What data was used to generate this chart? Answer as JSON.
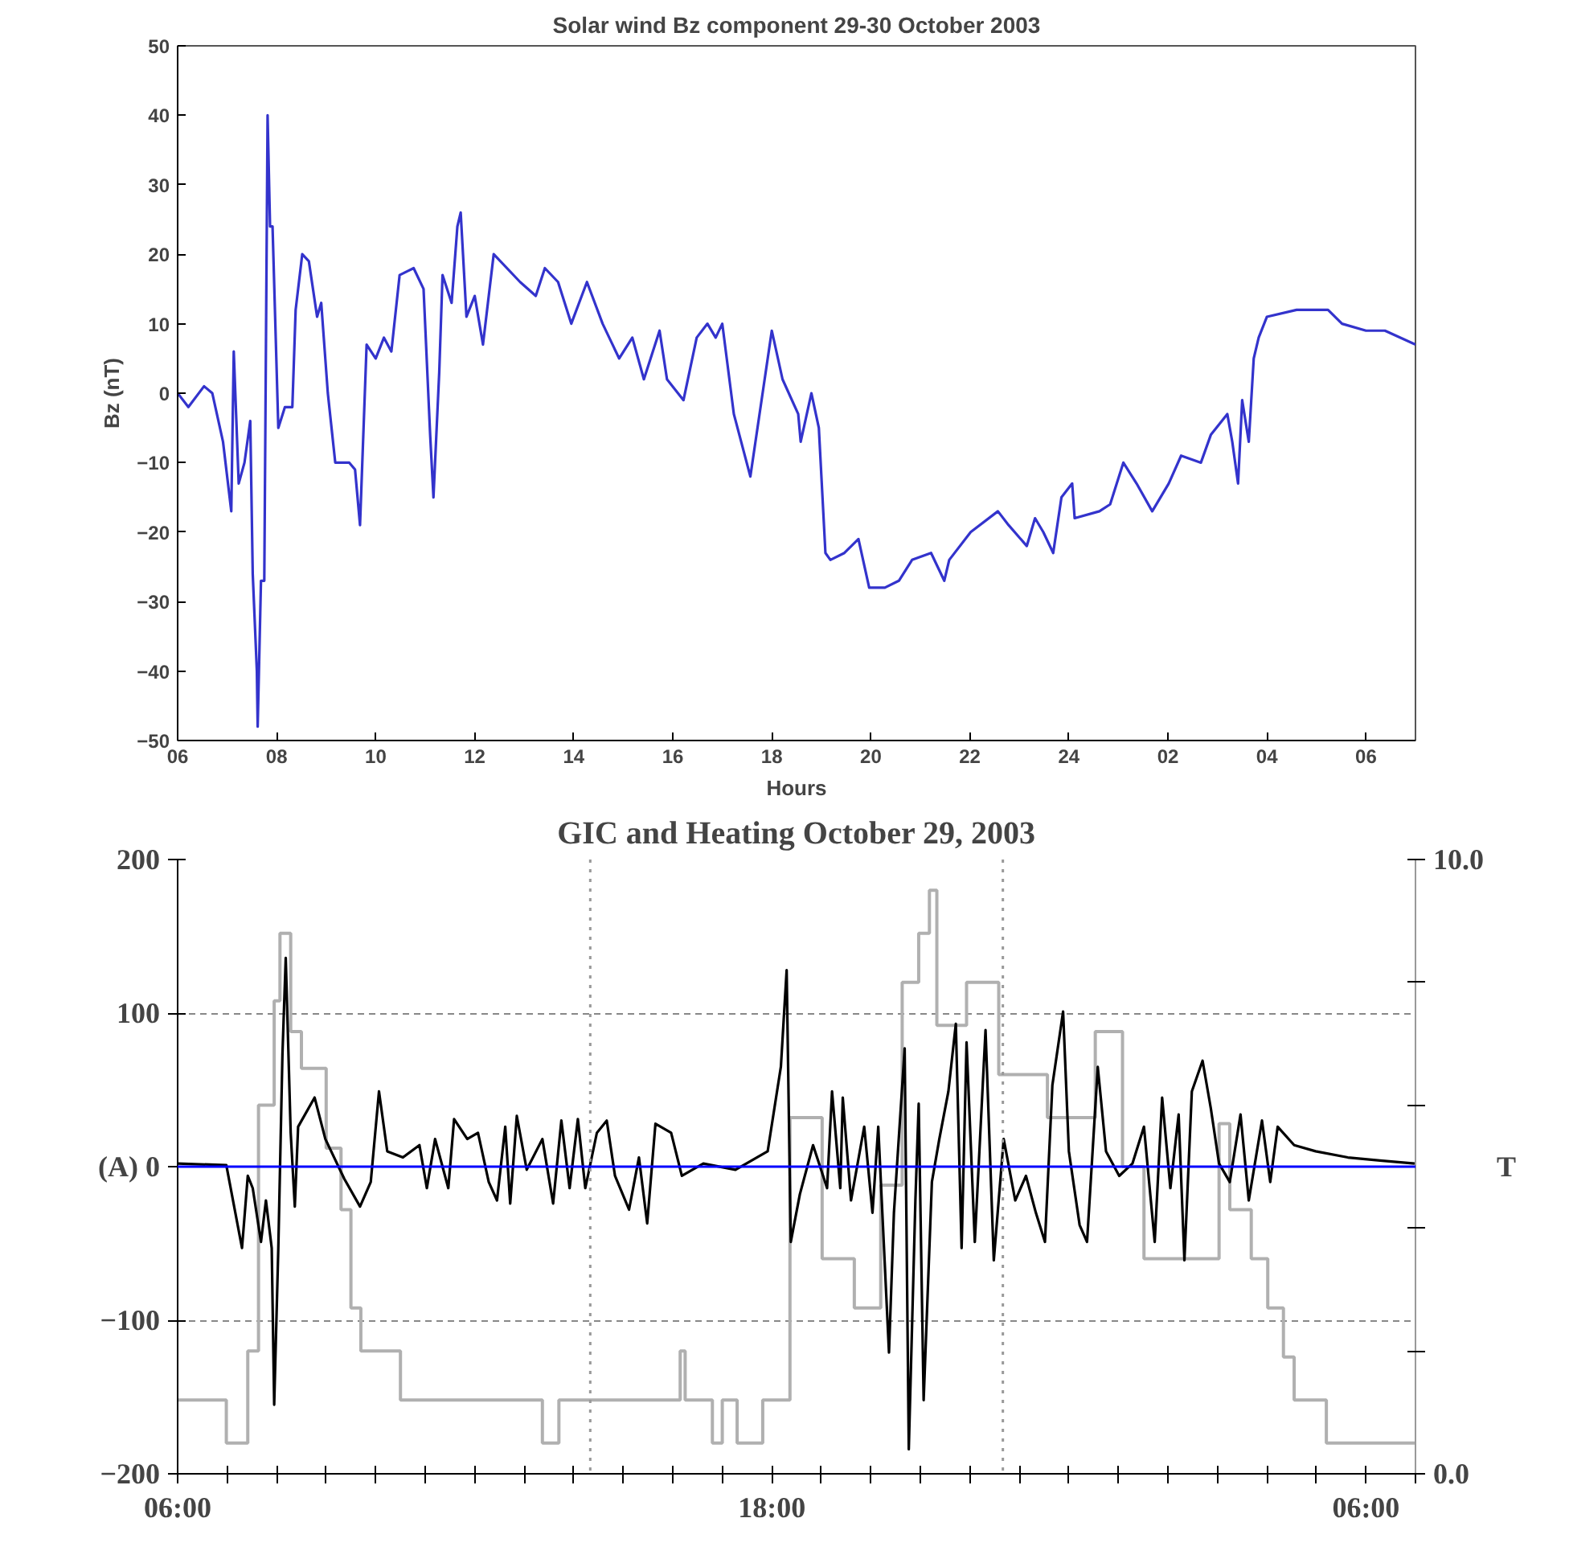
{
  "chart_data": [
    {
      "type": "line",
      "title": "Solar wind Bz component 29-30 October 2003",
      "xlabel": "Hours",
      "ylabel": "Bz (nT)",
      "xlim": [
        "2003-10-29T06:00",
        "2003-10-30T07:00"
      ],
      "ylim": [
        -50,
        50
      ],
      "xticks": [
        {
          "value": "2003-10-29T06:00",
          "label": "06"
        },
        {
          "value": "2003-10-29T08:00",
          "label": "08"
        },
        {
          "value": "2003-10-29T10:00",
          "label": "10"
        },
        {
          "value": "2003-10-29T12:00",
          "label": "12"
        },
        {
          "value": "2003-10-29T14:00",
          "label": "14"
        },
        {
          "value": "2003-10-29T16:00",
          "label": "16"
        },
        {
          "value": "2003-10-29T18:00",
          "label": "18"
        },
        {
          "value": "2003-10-29T20:00",
          "label": "20"
        },
        {
          "value": "2003-10-29T22:00",
          "label": "22"
        },
        {
          "value": "2003-10-30T00:00",
          "label": "24"
        },
        {
          "value": "2003-10-30T02:00",
          "label": "02"
        },
        {
          "value": "2003-10-30T04:00",
          "label": "04"
        },
        {
          "value": "2003-10-30T06:00",
          "label": "06"
        }
      ],
      "yticks": [
        -50,
        -40,
        -30,
        -20,
        -10,
        0,
        10,
        20,
        30,
        40,
        50
      ],
      "grid": false,
      "series": [
        {
          "color": "#3333cc",
          "x": [
            "2003-10-29T06:00",
            "2003-10-29T06:13",
            "2003-10-29T06:32",
            "2003-10-29T06:42",
            "2003-10-29T06:55",
            "2003-10-29T07:05",
            "2003-10-29T07:08",
            "2003-10-29T07:14",
            "2003-10-29T07:21",
            "2003-10-29T07:28",
            "2003-10-29T07:31",
            "2003-10-29T07:36",
            "2003-10-29T07:37",
            "2003-10-29T07:41",
            "2003-10-29T07:45",
            "2003-10-29T07:49",
            "2003-10-29T07:52",
            "2003-10-29T07:55",
            "2003-10-29T08:02",
            "2003-10-29T08:10",
            "2003-10-29T08:19",
            "2003-10-29T08:23",
            "2003-10-29T08:31",
            "2003-10-29T08:39",
            "2003-10-29T08:49",
            "2003-10-29T08:54",
            "2003-10-29T09:02",
            "2003-10-29T09:11",
            "2003-10-29T09:28",
            "2003-10-29T09:35",
            "2003-10-29T09:41",
            "2003-10-29T09:49",
            "2003-10-29T10:00",
            "2003-10-29T10:10",
            "2003-10-29T10:19",
            "2003-10-29T10:29",
            "2003-10-29T10:46",
            "2003-10-29T10:58",
            "2003-10-29T11:06",
            "2003-10-29T11:10",
            "2003-10-29T11:17",
            "2003-10-29T11:21",
            "2003-10-29T11:32",
            "2003-10-29T11:39",
            "2003-10-29T11:43",
            "2003-10-29T11:50",
            "2003-10-29T12:00",
            "2003-10-29T12:10",
            "2003-10-29T12:23",
            "2003-10-29T12:55",
            "2003-10-29T13:14",
            "2003-10-29T13:25",
            "2003-10-29T13:41",
            "2003-10-29T13:57",
            "2003-10-29T14:16",
            "2003-10-29T14:35",
            "2003-10-29T14:55",
            "2003-10-29T15:11",
            "2003-10-29T15:25",
            "2003-10-29T15:44",
            "2003-10-29T15:53",
            "2003-10-29T16:13",
            "2003-10-29T16:29",
            "2003-10-29T16:42",
            "2003-10-29T16:52",
            "2003-10-29T17:00",
            "2003-10-29T17:14",
            "2003-10-29T17:34",
            "2003-10-29T18:00",
            "2003-10-29T18:13",
            "2003-10-29T18:32",
            "2003-10-29T18:35",
            "2003-10-29T18:48",
            "2003-10-29T18:57",
            "2003-10-29T19:05",
            "2003-10-29T19:11",
            "2003-10-29T19:28",
            "2003-10-29T19:45",
            "2003-10-29T19:58",
            "2003-10-29T20:17",
            "2003-10-29T20:34",
            "2003-10-29T20:50",
            "2003-10-29T21:13",
            "2003-10-29T21:29",
            "2003-10-29T21:35",
            "2003-10-29T22:01",
            "2003-10-29T22:34",
            "2003-10-29T22:47",
            "2003-10-29T23:09",
            "2003-10-29T23:19",
            "2003-10-29T23:29",
            "2003-10-29T23:41",
            "2003-10-29T23:51",
            "2003-10-30T00:04",
            "2003-10-30T00:07",
            "2003-10-30T00:37",
            "2003-10-30T00:50",
            "2003-10-30T01:06",
            "2003-10-30T01:22",
            "2003-10-30T01:41",
            "2003-10-30T02:01",
            "2003-10-30T02:16",
            "2003-10-30T02:40",
            "2003-10-30T02:52",
            "2003-10-30T03:12",
            "2003-10-30T03:18",
            "2003-10-30T03:25",
            "2003-10-30T03:30",
            "2003-10-30T03:38",
            "2003-10-30T03:44",
            "2003-10-30T03:50",
            "2003-10-30T04:00",
            "2003-10-30T04:36",
            "2003-10-30T05:14",
            "2003-10-30T05:31",
            "2003-10-30T06:00",
            "2003-10-30T06:23",
            "2003-10-30T07:00"
          ],
          "values": [
            0,
            -2,
            1,
            0,
            -7,
            -17,
            6,
            -13,
            -10,
            -4,
            -26,
            -40,
            -48,
            -27,
            -27,
            40,
            24,
            24,
            -5,
            -2,
            -2,
            12,
            20,
            19,
            11,
            13,
            0,
            -10,
            -10,
            -11,
            -19,
            7,
            5,
            8,
            6,
            17,
            18,
            15,
            -6,
            -15,
            3,
            17,
            13,
            24,
            26,
            11,
            14,
            7,
            20,
            16,
            14,
            18,
            16,
            10,
            16,
            10,
            5,
            8,
            2,
            9,
            2,
            -1,
            8,
            10,
            8,
            10,
            -3,
            -12,
            9,
            2,
            -3,
            -7,
            0,
            -5,
            -23,
            -24,
            -23,
            -21,
            -28,
            -28,
            -27,
            -24,
            -23,
            -27,
            -24,
            -20,
            -17,
            -19,
            -22,
            -18,
            -20,
            -23,
            -15,
            -13,
            -18,
            -17,
            -16,
            -10,
            -13,
            -17,
            -13,
            -9,
            -10,
            -6,
            -3,
            -7,
            -13,
            -1,
            -7,
            5,
            8,
            11,
            12,
            12,
            10,
            9,
            9,
            7
          ]
        }
      ]
    },
    {
      "type": "line",
      "title": "GIC and Heating October 29, 2003",
      "y2label": "T",
      "xlim": [
        "2003-10-29T06:00",
        "2003-10-30T07:00"
      ],
      "ylim": [
        -200,
        200
      ],
      "y2lim": [
        0,
        10
      ],
      "xticks": [
        {
          "value": "2003-10-29T06:00",
          "label": "06:00"
        },
        {
          "value": "2003-10-29T07:00",
          "label": null
        },
        {
          "value": "2003-10-29T08:00",
          "label": null
        },
        {
          "value": "2003-10-29T09:00",
          "label": null
        },
        {
          "value": "2003-10-29T10:00",
          "label": null
        },
        {
          "value": "2003-10-29T11:00",
          "label": null
        },
        {
          "value": "2003-10-29T12:00",
          "label": null
        },
        {
          "value": "2003-10-29T13:00",
          "label": null
        },
        {
          "value": "2003-10-29T14:00",
          "label": null
        },
        {
          "value": "2003-10-29T15:00",
          "label": null
        },
        {
          "value": "2003-10-29T16:00",
          "label": null
        },
        {
          "value": "2003-10-29T17:00",
          "label": null
        },
        {
          "value": "2003-10-29T18:00",
          "label": "18:00"
        },
        {
          "value": "2003-10-29T19:00",
          "label": null
        },
        {
          "value": "2003-10-29T20:00",
          "label": null
        },
        {
          "value": "2003-10-29T21:00",
          "label": null
        },
        {
          "value": "2003-10-29T22:00",
          "label": null
        },
        {
          "value": "2003-10-29T23:00",
          "label": null
        },
        {
          "value": "2003-10-30T00:00",
          "label": null
        },
        {
          "value": "2003-10-30T01:00",
          "label": null
        },
        {
          "value": "2003-10-30T02:00",
          "label": null
        },
        {
          "value": "2003-10-30T03:00",
          "label": null
        },
        {
          "value": "2003-10-30T04:00",
          "label": null
        },
        {
          "value": "2003-10-30T05:00",
          "label": null
        },
        {
          "value": "2003-10-30T06:00",
          "label": "06:00"
        },
        {
          "value": "2003-10-30T07:00",
          "label": null
        }
      ],
      "yticks": [
        -200,
        -100,
        {
          "value": 0,
          "label": "(A) 0"
        },
        100,
        200
      ],
      "y2ticks": [
        {
          "value": 0,
          "label": "0.0"
        },
        {
          "value": 2,
          "label": null
        },
        {
          "value": 4,
          "label": null
        },
        {
          "value": 6,
          "label": null
        },
        {
          "value": 8,
          "label": null
        },
        {
          "value": 10,
          "label": "10.0"
        }
      ],
      "grid": "y",
      "ref_lines": [
        {
          "axis": "x",
          "value": "2003-10-29T14:20",
          "color": "#999999",
          "line_style": "dotted"
        },
        {
          "axis": "x",
          "value": "2003-10-29T22:40",
          "color": "#999999",
          "line_style": "dotted"
        },
        {
          "axis": "y",
          "value": 0,
          "color": "#0000ff",
          "line_style": "solid"
        }
      ],
      "series": [
        {
          "type": "step",
          "axis": "y2",
          "color": "#b0b0b0",
          "x": [
            "2003-10-29T06:00",
            "2003-10-29T06:59",
            "2003-10-29T07:25",
            "2003-10-29T07:38",
            "2003-10-29T07:57",
            "2003-10-29T08:04",
            "2003-10-29T08:17",
            "2003-10-29T08:30",
            "2003-10-29T09:00",
            "2003-10-29T09:18",
            "2003-10-29T09:30",
            "2003-10-29T09:42",
            "2003-10-29T10:30",
            "2003-10-29T13:22",
            "2003-10-29T13:42",
            "2003-10-29T16:09",
            "2003-10-29T16:15",
            "2003-10-29T16:48",
            "2003-10-29T17:00",
            "2003-10-29T17:18",
            "2003-10-29T17:49",
            "2003-10-29T18:22",
            "2003-10-29T19:01",
            "2003-10-29T19:40",
            "2003-10-29T20:12",
            "2003-10-29T20:38",
            "2003-10-29T20:58",
            "2003-10-29T21:11",
            "2003-10-29T21:20",
            "2003-10-29T21:56",
            "2003-10-29T22:35",
            "2003-10-29T23:34",
            "2003-10-30T00:32",
            "2003-10-30T01:05",
            "2003-10-30T01:31",
            "2003-10-30T03:02",
            "2003-10-30T03:15",
            "2003-10-30T03:41",
            "2003-10-30T04:01",
            "2003-10-30T04:20",
            "2003-10-30T04:33",
            "2003-10-30T05:12",
            "2003-10-30T06:59"
          ],
          "values": [
            1.2,
            0.5,
            2.0,
            6.0,
            7.7,
            8.8,
            7.2,
            6.6,
            5.3,
            4.3,
            2.7,
            2.0,
            1.2,
            0.5,
            1.2,
            2.0,
            1.2,
            0.5,
            1.2,
            0.5,
            1.2,
            5.8,
            3.5,
            2.7,
            4.7,
            8.0,
            8.8,
            9.5,
            7.3,
            8.0,
            6.5,
            5.8,
            7.2,
            5.0,
            3.5,
            5.7,
            4.3,
            3.5,
            2.7,
            1.9,
            1.2,
            0.5,
            0.5
          ]
        },
        {
          "type": "line",
          "color": "#000000",
          "x": [
            "2003-10-29T06:00",
            "2003-10-29T06:59",
            "2003-10-29T07:18",
            "2003-10-29T07:25",
            "2003-10-29T07:31",
            "2003-10-29T07:41",
            "2003-10-29T07:47",
            "2003-10-29T07:54",
            "2003-10-29T07:57",
            "2003-10-29T08:02",
            "2003-10-29T08:07",
            "2003-10-29T08:11",
            "2003-10-29T08:17",
            "2003-10-29T08:22",
            "2003-10-29T08:26",
            "2003-10-29T08:46",
            "2003-10-29T08:59",
            "2003-10-29T09:22",
            "2003-10-29T09:41",
            "2003-10-29T09:54",
            "2003-10-29T10:04",
            "2003-10-29T10:14",
            "2003-10-29T10:33",
            "2003-10-29T10:53",
            "2003-10-29T11:02",
            "2003-10-29T11:12",
            "2003-10-29T11:28",
            "2003-10-29T11:35",
            "2003-10-29T11:51",
            "2003-10-29T12:04",
            "2003-10-29T12:17",
            "2003-10-29T12:27",
            "2003-10-29T12:37",
            "2003-10-29T12:43",
            "2003-10-29T12:51",
            "2003-10-29T13:03",
            "2003-10-29T13:22",
            "2003-10-29T13:35",
            "2003-10-29T13:45",
            "2003-10-29T13:55",
            "2003-10-29T14:05",
            "2003-10-29T14:14",
            "2003-10-29T14:28",
            "2003-10-29T14:40",
            "2003-10-29T14:50",
            "2003-10-29T15:07",
            "2003-10-29T15:19",
            "2003-10-29T15:29",
            "2003-10-29T15:39",
            "2003-10-29T15:58",
            "2003-10-29T16:11",
            "2003-10-29T16:37",
            "2003-10-29T17:16",
            "2003-10-29T17:55",
            "2003-10-29T18:11",
            "2003-10-29T18:18",
            "2003-10-29T18:23",
            "2003-10-29T18:34",
            "2003-10-29T18:50",
            "2003-10-29T19:07",
            "2003-10-29T19:13",
            "2003-10-29T19:23",
            "2003-10-29T19:26",
            "2003-10-29T19:36",
            "2003-10-29T19:52",
            "2003-10-29T20:02",
            "2003-10-29T20:09",
            "2003-10-29T20:22",
            "2003-10-29T20:28",
            "2003-10-29T20:41",
            "2003-10-29T20:46",
            "2003-10-29T20:54",
            "2003-10-29T20:58",
            "2003-10-29T21:04",
            "2003-10-29T21:14",
            "2003-10-29T21:23",
            "2003-10-29T21:34",
            "2003-10-29T21:43",
            "2003-10-29T21:50",
            "2003-10-29T21:56",
            "2003-10-29T22:06",
            "2003-10-29T22:19",
            "2003-10-29T22:29",
            "2003-10-29T22:41",
            "2003-10-29T22:55",
            "2003-10-29T23:08",
            "2003-10-29T23:20",
            "2003-10-29T23:31",
            "2003-10-29T23:40",
            "2003-10-29T23:53",
            "2003-10-30T00:00",
            "2003-10-30T00:13",
            "2003-10-30T00:22",
            "2003-10-30T00:35",
            "2003-10-30T00:45",
            "2003-10-30T01:01",
            "2003-10-30T01:17",
            "2003-10-30T01:31",
            "2003-10-30T01:44",
            "2003-10-30T01:53",
            "2003-10-30T02:03",
            "2003-10-30T02:13",
            "2003-10-30T02:20",
            "2003-10-30T02:29",
            "2003-10-30T02:42",
            "2003-10-30T02:52",
            "2003-10-30T03:02",
            "2003-10-30T03:15",
            "2003-10-30T03:28",
            "2003-10-30T03:38",
            "2003-10-30T03:54",
            "2003-10-30T04:04",
            "2003-10-30T04:13",
            "2003-10-30T04:33",
            "2003-10-30T04:59",
            "2003-10-30T05:38",
            "2003-10-30T06:17",
            "2003-10-30T06:59"
          ],
          "values": [
            2,
            1,
            -53,
            -6,
            -14,
            -49,
            -22,
            -53,
            -155,
            -53,
            73,
            136,
            22,
            -26,
            26,
            45,
            18,
            -8,
            -26,
            -10,
            49,
            10,
            6,
            14,
            -14,
            18,
            -14,
            31,
            18,
            22,
            -10,
            -22,
            26,
            -24,
            33,
            -2,
            18,
            -24,
            30,
            -14,
            31,
            -14,
            22,
            30,
            -6,
            -28,
            6,
            -37,
            28,
            22,
            -6,
            2,
            -2,
            10,
            65,
            128,
            -49,
            -18,
            14,
            -14,
            49,
            -14,
            45,
            -22,
            26,
            -30,
            26,
            -121,
            -30,
            77,
            -184,
            -22,
            41,
            -152,
            -10,
            18,
            49,
            93,
            -53,
            81,
            -49,
            89,
            -61,
            18,
            -22,
            -6,
            -30,
            -49,
            53,
            101,
            10,
            -38,
            -49,
            65,
            10,
            -6,
            2,
            26,
            -49,
            45,
            -14,
            34,
            -61,
            49,
            69,
            38,
            2,
            -10,
            34,
            -22,
            30,
            -10,
            26,
            14,
            10,
            6,
            4,
            2
          ]
        }
      ]
    }
  ]
}
